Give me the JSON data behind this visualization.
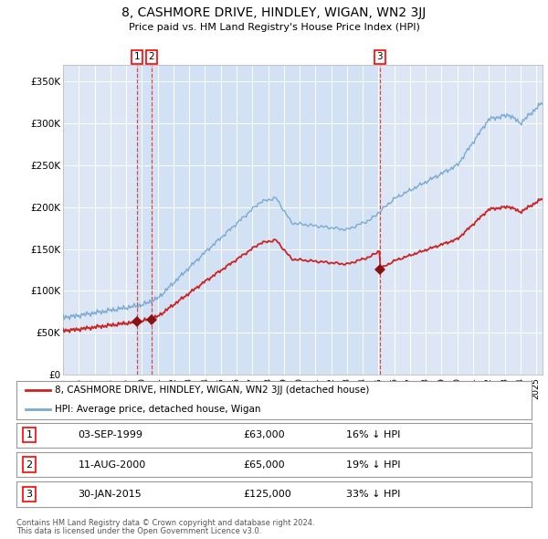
{
  "title": "8, CASHMORE DRIVE, HINDLEY, WIGAN, WN2 3JJ",
  "subtitle": "Price paid vs. HM Land Registry's House Price Index (HPI)",
  "plot_bg_color": "#dce6f5",
  "grid_color": "#ffffff",
  "hpi_color": "#7aaad0",
  "price_color": "#cc2222",
  "sale_marker_color": "#881111",
  "ylim": [
    0,
    370000
  ],
  "xlim_start": 1995.0,
  "xlim_end": 2025.4,
  "sale_events": [
    {
      "label": "1",
      "date_num": 1999.67,
      "price": 63000,
      "date_str": "03-SEP-1999",
      "pct": "16% ↓ HPI"
    },
    {
      "label": "2",
      "date_num": 2000.61,
      "price": 65000,
      "date_str": "11-AUG-2000",
      "pct": "19% ↓ HPI"
    },
    {
      "label": "3",
      "date_num": 2015.08,
      "price": 125000,
      "date_str": "30-JAN-2015",
      "pct": "33% ↓ HPI"
    }
  ],
  "legend_line1": "8, CASHMORE DRIVE, HINDLEY, WIGAN, WN2 3JJ (detached house)",
  "legend_line2": "HPI: Average price, detached house, Wigan",
  "footer1": "Contains HM Land Registry data © Crown copyright and database right 2024.",
  "footer2": "This data is licensed under the Open Government Licence v3.0.",
  "yticks": [
    0,
    50000,
    100000,
    150000,
    200000,
    250000,
    300000,
    350000
  ],
  "ytick_labels": [
    "£0",
    "£50K",
    "£100K",
    "£150K",
    "£200K",
    "£250K",
    "£300K",
    "£350K"
  ],
  "xticks": [
    1995,
    1996,
    1997,
    1998,
    1999,
    2000,
    2001,
    2002,
    2003,
    2004,
    2005,
    2006,
    2007,
    2008,
    2009,
    2010,
    2011,
    2012,
    2013,
    2014,
    2015,
    2016,
    2017,
    2018,
    2019,
    2020,
    2021,
    2022,
    2023,
    2024,
    2025
  ]
}
